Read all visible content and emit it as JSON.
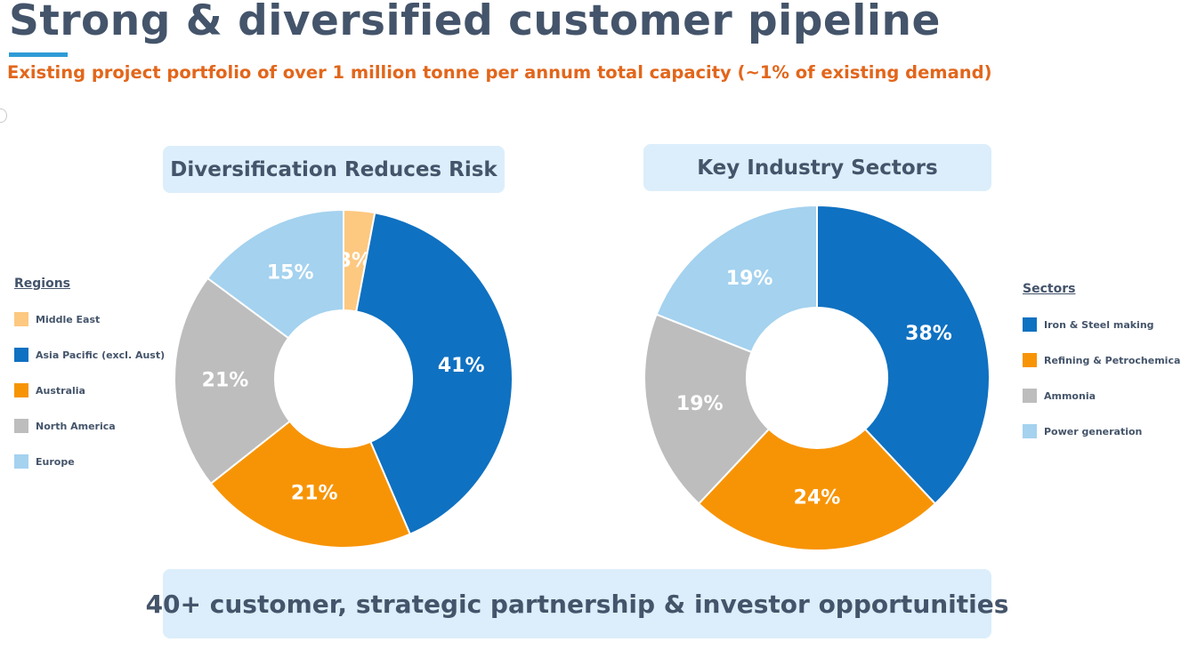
{
  "header": {
    "title": "Strong & diversified customer pipeline",
    "subtitle": "Existing project portfolio of over 1 million tonne per annum total capacity (~1% of existing demand)"
  },
  "footer": {
    "banner": "40+ customer, strategic partnership & investor opportunities"
  },
  "chart_data": [
    {
      "type": "pie",
      "title": "Diversification Reduces Risk",
      "legend_title": "Regions",
      "legend_position": "left",
      "categories": [
        "Middle East",
        "Asia Pacific (excl. Aust)",
        "Australia",
        "North America",
        "Europe"
      ],
      "values": [
        3,
        41,
        21,
        21,
        15
      ],
      "labels": [
        "3%",
        "41%",
        "21%",
        "21%",
        "15%"
      ],
      "colors": [
        "#fdc880",
        "#0f71c1",
        "#f79406",
        "#bdbdbd",
        "#a4d2ef"
      ]
    },
    {
      "type": "pie",
      "title": "Key Industry Sectors",
      "legend_title": "Sectors",
      "legend_position": "right",
      "categories": [
        "Iron & Steel making",
        "Refining & Petrochemicals",
        "Ammonia",
        "Power generation"
      ],
      "values": [
        38,
        24,
        19,
        19
      ],
      "labels": [
        "38%",
        "24%",
        "19%",
        "19%"
      ],
      "colors": [
        "#0f71c1",
        "#f79406",
        "#bdbdbd",
        "#a4d2ef"
      ]
    }
  ]
}
